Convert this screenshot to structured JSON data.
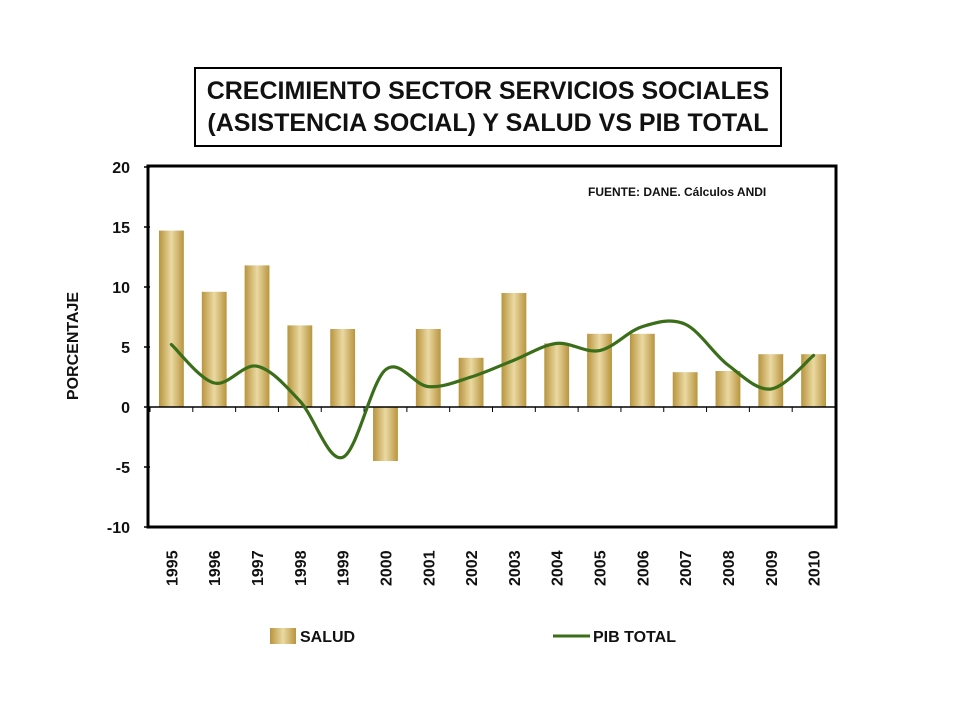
{
  "chart_data": {
    "type": "bar",
    "title": [
      "CRECIMIENTO SECTOR SERVICIOS SOCIALES",
      "(ASISTENCIA SOCIAL) Y SALUD VS PIB TOTAL"
    ],
    "ylabel": "PORCENTAJE",
    "ylim": [
      -10,
      20
    ],
    "yticks": [
      20,
      15,
      10,
      5,
      0,
      -5,
      -10
    ],
    "categories": [
      "1995",
      "1996",
      "1997",
      "1998",
      "1999",
      "2000",
      "2001",
      "2002",
      "2003",
      "2004",
      "2005",
      "2006",
      "2007",
      "2008",
      "2009",
      "2010"
    ],
    "annotation": "FUENTE: DANE. Cálculos ANDI",
    "legend_position": "bottom",
    "series": [
      {
        "name": "SALUD",
        "kind": "bar",
        "color": "#c9ab5a",
        "values": [
          14.7,
          9.6,
          11.8,
          6.8,
          6.5,
          -4.5,
          6.5,
          4.1,
          9.5,
          5.3,
          6.1,
          6.1,
          2.9,
          3.0,
          4.4,
          4.4
        ]
      },
      {
        "name": "PIB TOTAL",
        "kind": "line",
        "color": "#3b6e1a",
        "values": [
          5.2,
          2.0,
          3.4,
          0.5,
          -4.2,
          3.1,
          1.7,
          2.5,
          3.9,
          5.3,
          4.7,
          6.7,
          6.9,
          3.5,
          1.5,
          4.3
        ]
      }
    ]
  }
}
